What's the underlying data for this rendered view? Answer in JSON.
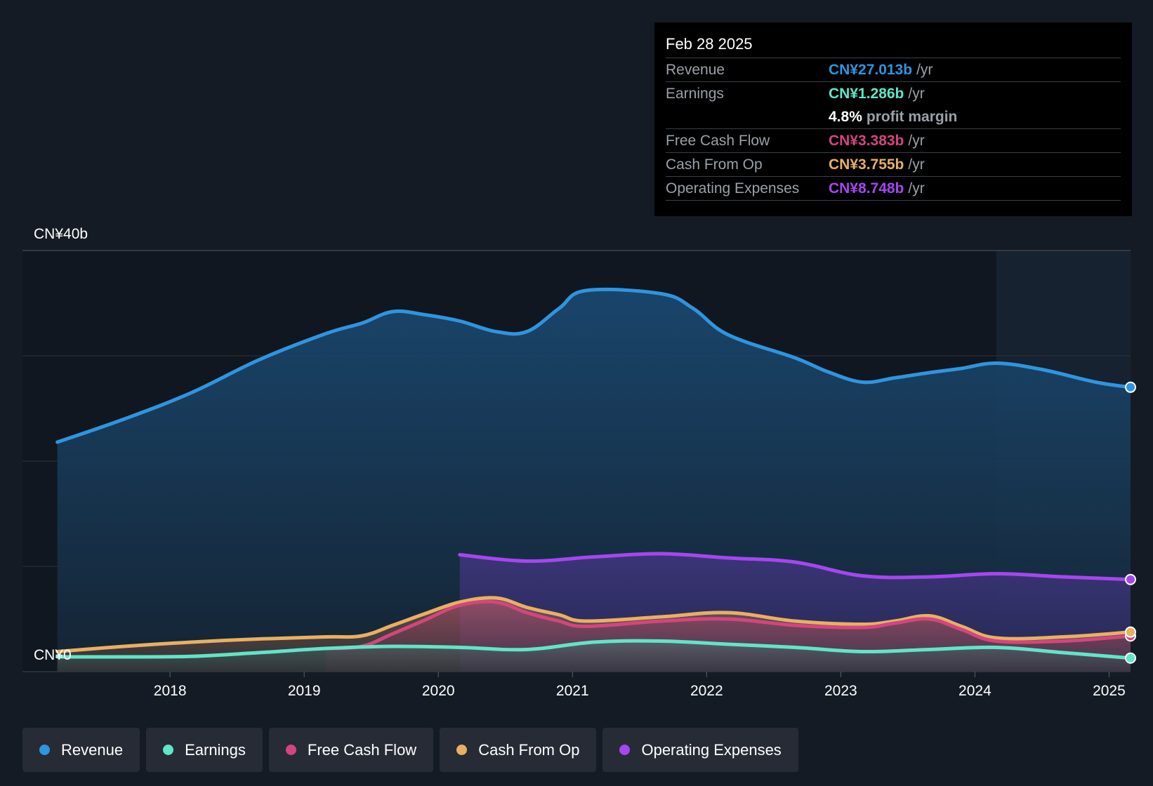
{
  "tooltip": {
    "date": "Feb 28 2025",
    "rows": {
      "revenue": {
        "label": "Revenue",
        "value": "CN¥27.013b",
        "unit": "/yr"
      },
      "earnings": {
        "label": "Earnings",
        "value": "CN¥1.286b",
        "unit": "/yr"
      },
      "margin": {
        "value": "4.8%",
        "text": "profit margin"
      },
      "fcf": {
        "label": "Free Cash Flow",
        "value": "CN¥3.383b",
        "unit": "/yr"
      },
      "cfo": {
        "label": "Cash From Op",
        "value": "CN¥3.755b",
        "unit": "/yr"
      },
      "opex": {
        "label": "Operating Expenses",
        "value": "CN¥8.748b",
        "unit": "/yr"
      }
    }
  },
  "legend": [
    {
      "label": "Revenue",
      "color": "#2e95e0"
    },
    {
      "label": "Earnings",
      "color": "#5ee6c8"
    },
    {
      "label": "Free Cash Flow",
      "color": "#d2467f"
    },
    {
      "label": "Cash From Op",
      "color": "#e8b060"
    },
    {
      "label": "Operating Expenses",
      "color": "#a646f0"
    }
  ],
  "chart_data": {
    "type": "area",
    "title": "",
    "currency": "CN¥",
    "xlabel": "",
    "ylabel": "",
    "ylim": [
      0,
      40
    ],
    "y_tick_labels": [
      "CN¥40b",
      "CN¥0"
    ],
    "x_tick_labels": [
      "2018",
      "2019",
      "2020",
      "2021",
      "2022",
      "2023",
      "2024",
      "2025"
    ],
    "x_ticks": [
      2018,
      2019,
      2020,
      2021,
      2022,
      2023,
      2024,
      2025
    ],
    "xlim": [
      2016.9,
      2025.16
    ],
    "forecast_start": 2024.16,
    "series": [
      {
        "name": "Revenue",
        "color": "#2e95e0",
        "x": [
          2017.16,
          2017.66,
          2018.16,
          2018.66,
          2019.16,
          2019.43,
          2019.66,
          2019.9,
          2020.16,
          2020.43,
          2020.66,
          2020.9,
          2021.1,
          2021.66,
          2021.9,
          2022.16,
          2022.66,
          2022.9,
          2023.16,
          2023.4,
          2023.66,
          2023.9,
          2024.16,
          2024.5,
          2024.9,
          2025.16
        ],
        "values": [
          21.8,
          24.0,
          26.5,
          29.6,
          32.1,
          33.1,
          34.2,
          33.9,
          33.3,
          32.3,
          32.3,
          34.5,
          36.2,
          35.9,
          34.5,
          32.0,
          29.8,
          28.5,
          27.5,
          27.9,
          28.4,
          28.8,
          29.3,
          28.7,
          27.5,
          27.013
        ]
      },
      {
        "name": "Earnings",
        "color": "#5ee6c8",
        "x": [
          2017.16,
          2017.66,
          2018.16,
          2018.66,
          2019.16,
          2019.66,
          2020.16,
          2020.66,
          2021.16,
          2021.66,
          2022.16,
          2022.66,
          2023.16,
          2023.66,
          2024.16,
          2024.66,
          2025.16
        ],
        "values": [
          1.4,
          1.4,
          1.45,
          1.8,
          2.2,
          2.4,
          2.3,
          2.1,
          2.8,
          2.9,
          2.6,
          2.3,
          1.9,
          2.1,
          2.3,
          1.8,
          1.286
        ]
      },
      {
        "name": "Free Cash Flow",
        "color": "#d2467f",
        "x": [
          2019.16,
          2019.43,
          2019.66,
          2019.9,
          2020.16,
          2020.43,
          2020.66,
          2020.9,
          2021.1,
          2021.66,
          2022.16,
          2022.66,
          2023.16,
          2023.4,
          2023.66,
          2023.9,
          2024.16,
          2024.66,
          2025.16
        ],
        "values": [
          2.2,
          2.4,
          3.6,
          4.9,
          6.3,
          6.6,
          5.6,
          4.8,
          4.3,
          4.8,
          5.0,
          4.4,
          4.2,
          4.6,
          5.0,
          4.0,
          2.9,
          2.9,
          3.383
        ]
      },
      {
        "name": "Cash From Op",
        "color": "#e8b060",
        "x": [
          2017.16,
          2017.66,
          2018.16,
          2018.66,
          2019.16,
          2019.43,
          2019.66,
          2019.9,
          2020.16,
          2020.43,
          2020.66,
          2020.9,
          2021.1,
          2021.66,
          2022.16,
          2022.66,
          2023.16,
          2023.4,
          2023.66,
          2023.9,
          2024.16,
          2024.66,
          2025.16
        ],
        "values": [
          1.9,
          2.4,
          2.8,
          3.1,
          3.3,
          3.4,
          4.4,
          5.5,
          6.6,
          7.0,
          6.1,
          5.4,
          4.8,
          5.2,
          5.6,
          4.8,
          4.5,
          4.8,
          5.3,
          4.3,
          3.2,
          3.3,
          3.755
        ]
      },
      {
        "name": "Operating Expenses",
        "color": "#a646f0",
        "x": [
          2020.16,
          2020.66,
          2021.16,
          2021.66,
          2022.16,
          2022.66,
          2023.16,
          2023.66,
          2024.16,
          2024.66,
          2025.16
        ],
        "values": [
          11.1,
          10.5,
          10.9,
          11.2,
          10.8,
          10.4,
          9.1,
          9.0,
          9.3,
          9.0,
          8.748
        ]
      }
    ]
  }
}
